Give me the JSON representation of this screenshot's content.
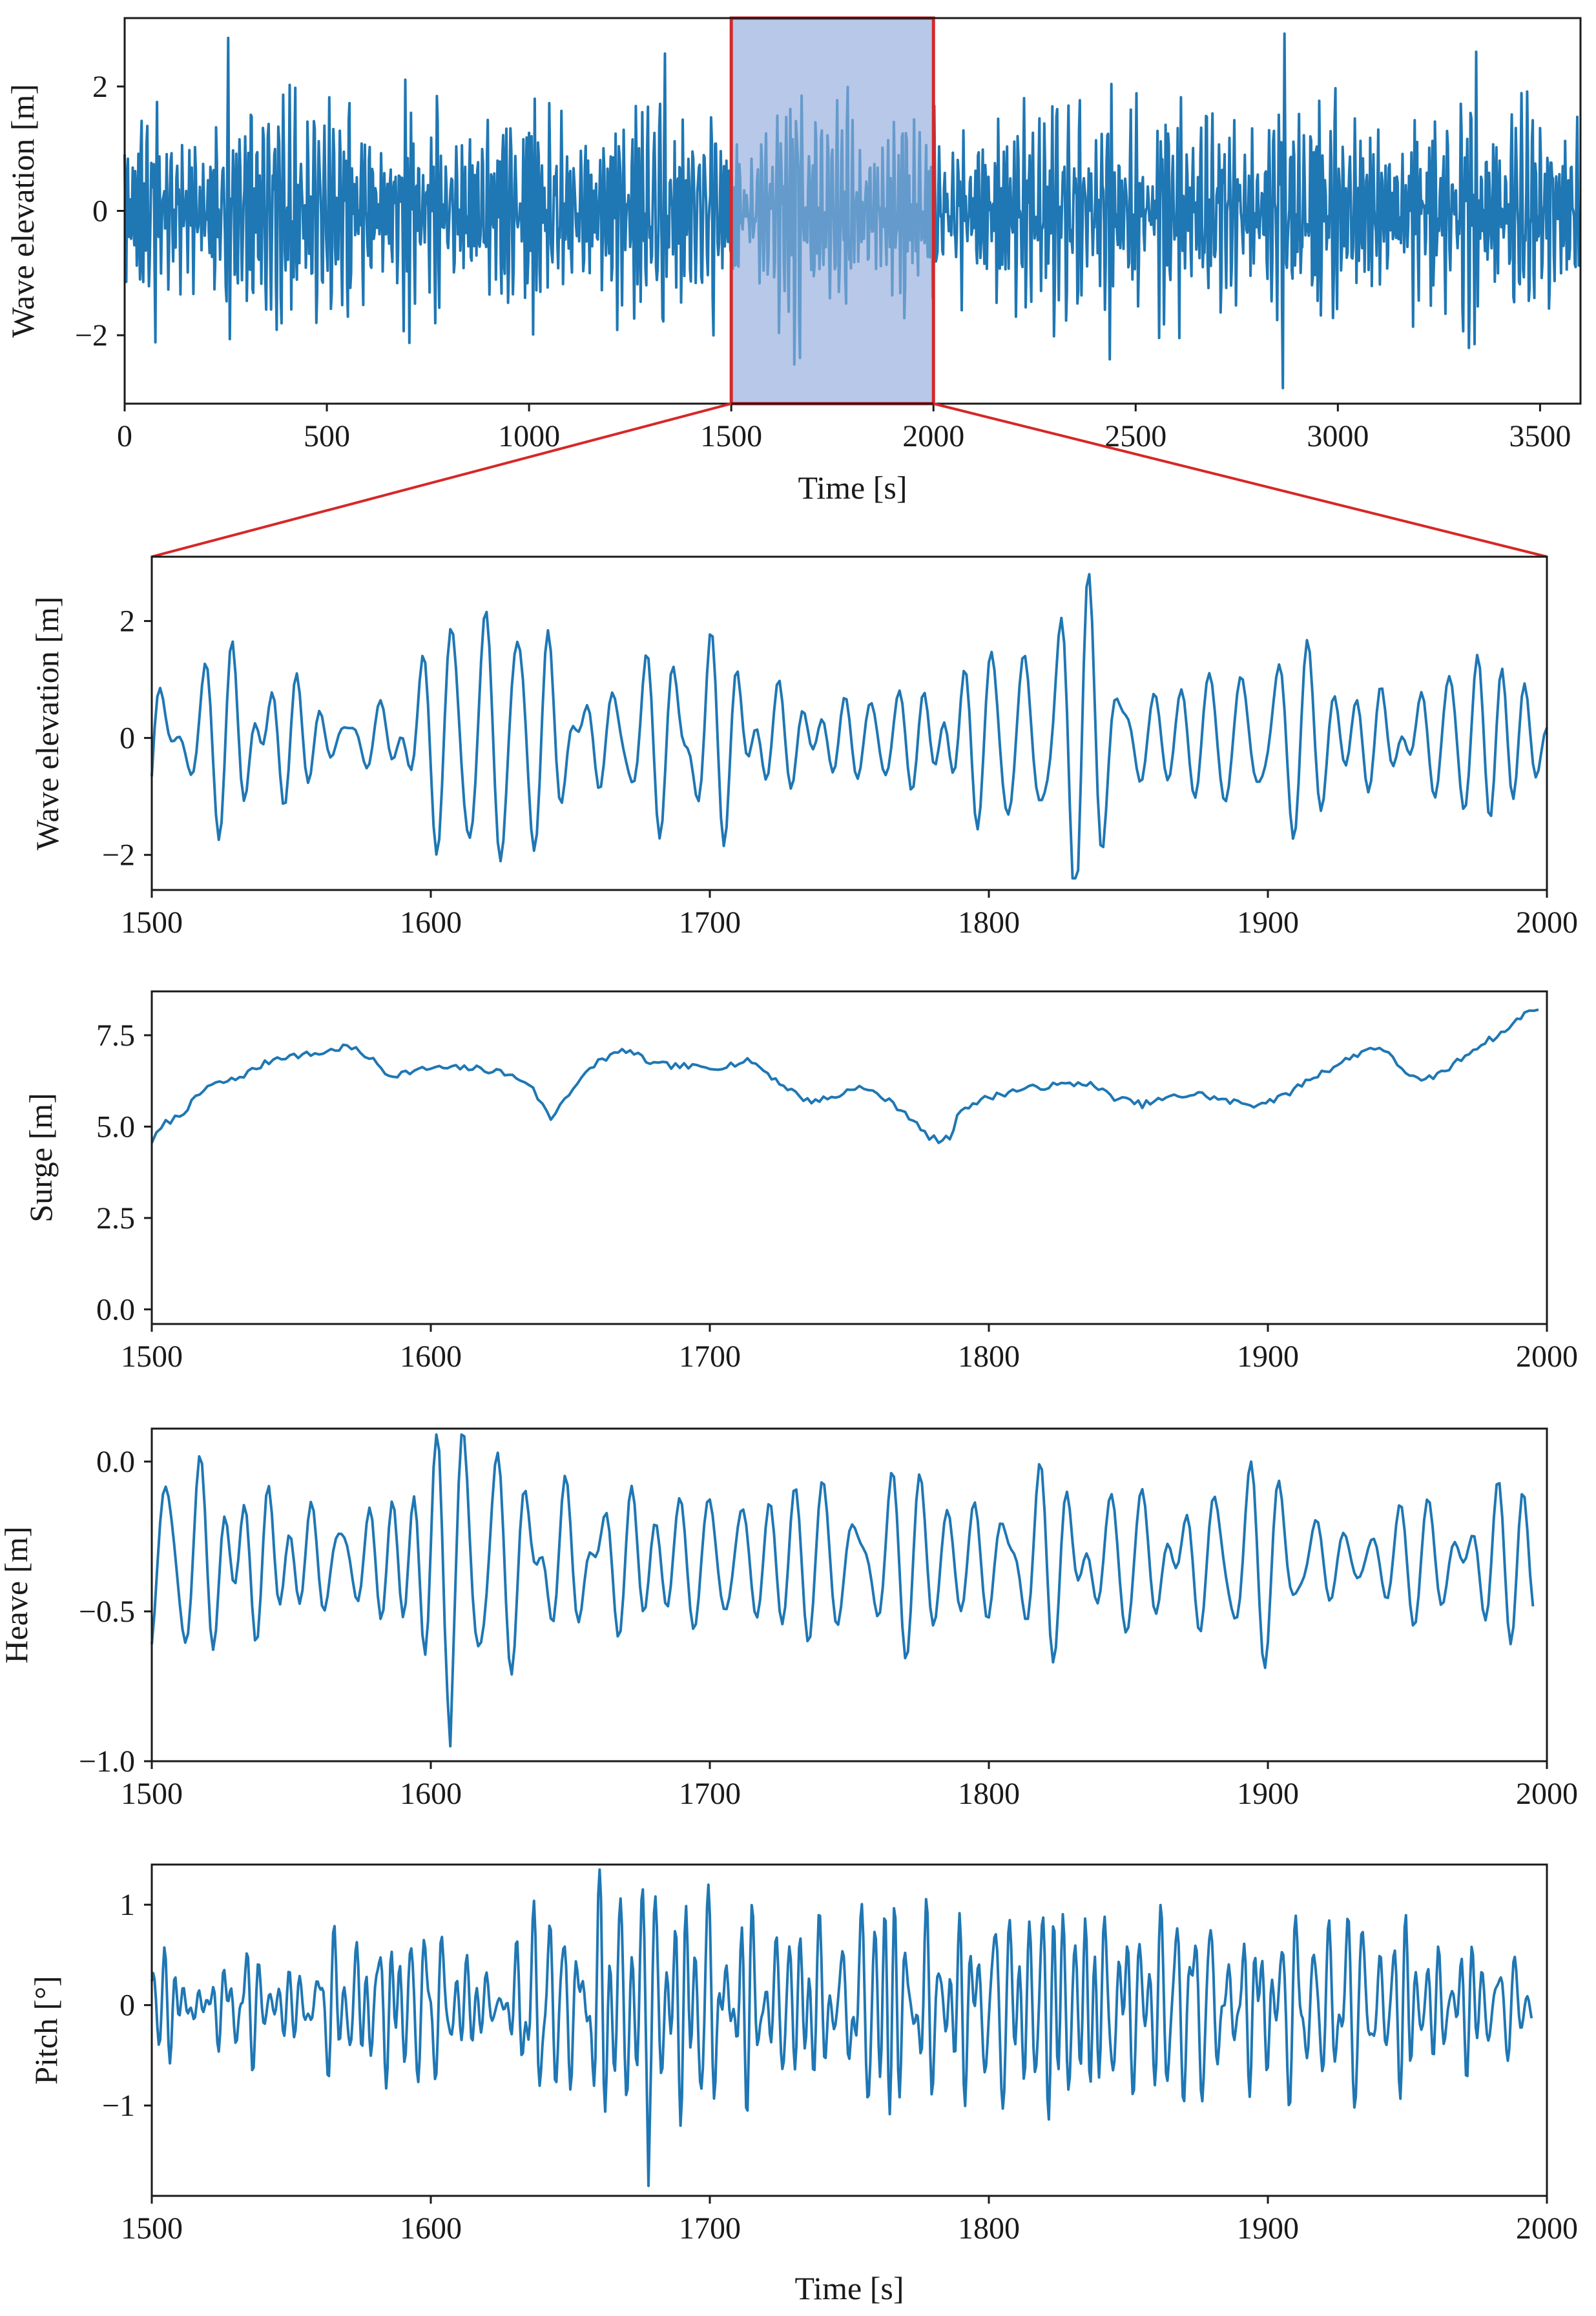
{
  "colors": {
    "series": "#1f77b4",
    "axis": "#1a1a1a",
    "highlight_fill": "#b8c8e8",
    "highlight_edge": "#d62728"
  },
  "chart_data": [
    {
      "id": "overview",
      "type": "line",
      "title": "",
      "xlabel": "Time [s]",
      "ylabel": "Wave elevation [m]",
      "xlim": [
        0,
        3600
      ],
      "ylim": [
        -3.1,
        3.1
      ],
      "xticks": [
        0,
        500,
        1000,
        1500,
        2000,
        2500,
        3000,
        3500
      ],
      "xtick_labels": [
        "0",
        "500",
        "1000",
        "1500",
        "2000",
        "2500",
        "3000",
        "3500"
      ],
      "yticks": [
        -2,
        0,
        2
      ],
      "ytick_labels": [
        "−2",
        "0",
        "2"
      ],
      "highlight_range": [
        1500,
        2000
      ],
      "series": [
        {
          "name": "Wave elevation",
          "x_start": 0,
          "x_step": 2,
          "n": 1800,
          "std": 0.8,
          "min": -2.85,
          "max": 2.85
        }
      ]
    },
    {
      "id": "wave-zoom",
      "type": "line",
      "title": "",
      "xlabel": "",
      "ylabel": "Wave elevation [m]",
      "xlim": [
        1500,
        2000
      ],
      "ylim": [
        -2.6,
        3.1
      ],
      "xticks": [
        1500,
        1600,
        1700,
        1800,
        1900,
        2000
      ],
      "xtick_labels": [
        "1500",
        "1600",
        "1700",
        "1800",
        "1900",
        "2000"
      ],
      "yticks": [
        -2,
        0,
        2
      ],
      "ytick_labels": [
        "−2",
        "0",
        "2"
      ],
      "series": [
        {
          "name": "Wave elevation",
          "x_start": 1500,
          "x_step": 1,
          "n": 501,
          "std": 0.85,
          "min": -2.4,
          "max": 2.8
        }
      ]
    },
    {
      "id": "surge",
      "type": "line",
      "title": "",
      "xlabel": "",
      "ylabel": "Surge [m]",
      "xlim": [
        1500,
        2000
      ],
      "ylim": [
        -0.4,
        8.7
      ],
      "xticks": [
        1500,
        1600,
        1700,
        1800,
        1900,
        2000
      ],
      "xtick_labels": [
        "1500",
        "1600",
        "1700",
        "1800",
        "1900",
        "2000"
      ],
      "yticks": [
        0.0,
        2.5,
        5.0,
        7.5
      ],
      "ytick_labels": [
        "0.0",
        "2.5",
        "5.0",
        "7.5"
      ],
      "series": [
        {
          "name": "Surge",
          "x": [
            1500,
            1505,
            1510,
            1520,
            1530,
            1545,
            1560,
            1570,
            1578,
            1585,
            1600,
            1615,
            1625,
            1635,
            1640,
            1643,
            1648,
            1660,
            1670,
            1680,
            1700,
            1715,
            1725,
            1735,
            1745,
            1752,
            1760,
            1770,
            1777,
            1782,
            1786,
            1790,
            1800,
            1810,
            1820,
            1835,
            1845,
            1855,
            1865,
            1875,
            1885,
            1895,
            1905,
            1915,
            1925,
            1935,
            1940,
            1948,
            1955,
            1965,
            1975,
            1985,
            1992,
            1997
          ],
          "values": [
            4.6,
            5.1,
            5.3,
            6.1,
            6.3,
            6.9,
            7.0,
            7.2,
            6.9,
            6.4,
            6.6,
            6.6,
            6.5,
            6.2,
            5.6,
            5.2,
            5.8,
            6.8,
            7.1,
            6.7,
            6.6,
            6.8,
            6.2,
            5.7,
            5.8,
            6.1,
            5.9,
            5.4,
            4.8,
            4.6,
            4.7,
            5.5,
            5.8,
            6.0,
            6.1,
            6.2,
            5.8,
            5.6,
            5.8,
            5.9,
            5.7,
            5.6,
            5.8,
            6.3,
            6.7,
            7.1,
            7.2,
            6.6,
            6.2,
            6.6,
            7.2,
            7.6,
            8.1,
            8.2
          ]
        }
      ]
    },
    {
      "id": "heave",
      "type": "line",
      "title": "",
      "xlabel": "",
      "ylabel": "Heave [m]",
      "xlim": [
        1500,
        2000
      ],
      "ylim": [
        -1.0,
        0.11
      ],
      "xticks": [
        1500,
        1600,
        1700,
        1800,
        1900,
        2000
      ],
      "xtick_labels": [
        "1500",
        "1600",
        "1700",
        "1800",
        "1900",
        "2000"
      ],
      "yticks": [
        -1.0,
        -0.5,
        0.0
      ],
      "ytick_labels": [
        "−1.0",
        "−0.5",
        "0.0"
      ],
      "series": [
        {
          "name": "Heave",
          "x_start": 1500,
          "x_step": 1,
          "n": 496,
          "mean": -0.33,
          "std": 0.16,
          "min": -0.95,
          "max": 0.09
        }
      ]
    },
    {
      "id": "pitch",
      "type": "line",
      "title": "",
      "xlabel": "Time [s]",
      "ylabel": "Pitch [°]",
      "xlim": [
        1500,
        2000
      ],
      "ylim": [
        -1.9,
        1.4
      ],
      "xticks": [
        1500,
        1600,
        1700,
        1800,
        1900,
        2000
      ],
      "xtick_labels": [
        "1500",
        "1600",
        "1700",
        "1800",
        "1900",
        "2000"
      ],
      "yticks": [
        -1,
        0,
        1
      ],
      "ytick_labels": [
        "−1",
        "0",
        "1"
      ],
      "series": [
        {
          "name": "Pitch",
          "x_start": 1500,
          "x_step": 0.5,
          "n": 990,
          "std": 0.45,
          "min": -1.8,
          "max": 1.35
        }
      ]
    }
  ]
}
